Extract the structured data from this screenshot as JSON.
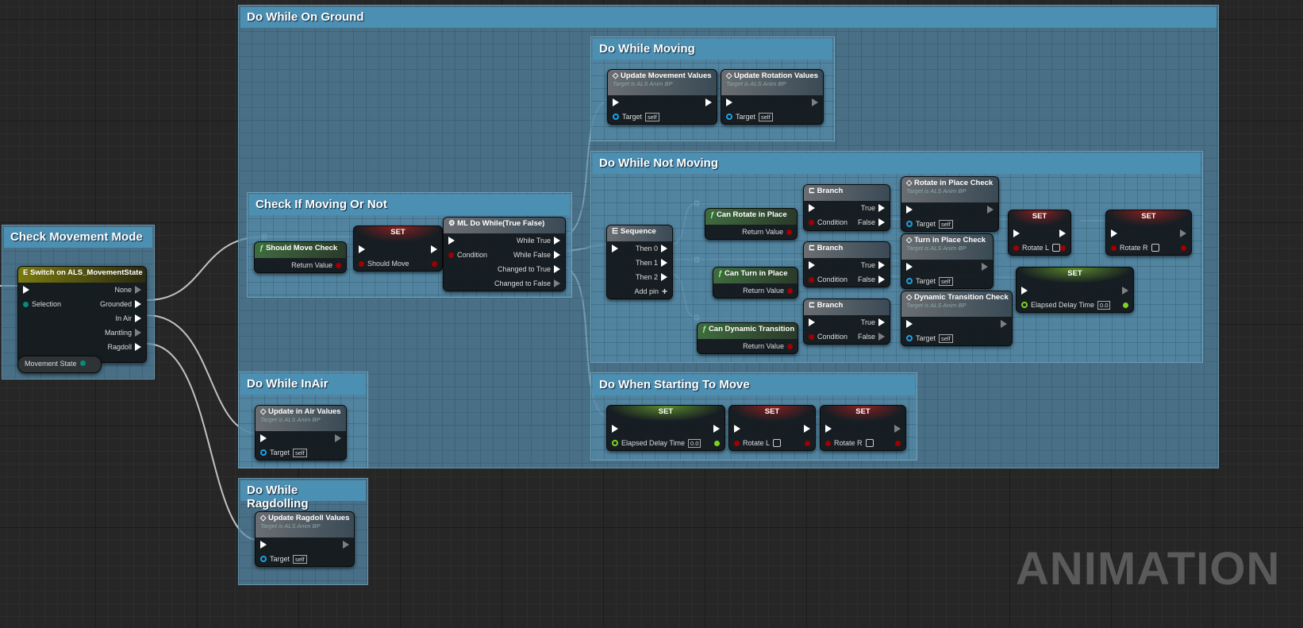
{
  "colors": {
    "comment_header": "#4b8fb3",
    "func_header": "#3f6b3f",
    "set_bool": "#8b1f1f",
    "set_float": "#5a8a2a",
    "switch_header": "#7a7a10",
    "call_header": "#3a4a55",
    "bool_pin": "#a00000",
    "obj_pin": "#1ea0e6",
    "float_pin": "#7ed321",
    "enum_pin": "#0a8a7a"
  },
  "comments": [
    {
      "id": "ground",
      "title": "Do While On Ground"
    },
    {
      "id": "mode",
      "title": "Check Movement Mode"
    },
    {
      "id": "check",
      "title": "Check If Moving Or Not"
    },
    {
      "id": "moving",
      "title": "Do While Moving"
    },
    {
      "id": "notmoving",
      "title": "Do While Not Moving"
    },
    {
      "id": "starting",
      "title": "Do When Starting To Move"
    },
    {
      "id": "inair",
      "title": "Do While InAir"
    },
    {
      "id": "ragdoll",
      "title": "Do While Ragdolling"
    }
  ],
  "nodes": [
    {
      "id": "switch",
      "kind": "switch",
      "title": "Switch on ALS_MovementState",
      "icon": "switch-icon",
      "rows": [
        [
          {
            "t": "exec"
          },
          {
            "t": "exec",
            "l": "None",
            "open": true
          }
        ],
        [
          {
            "t": "enum",
            "l": "Selection"
          },
          {
            "t": "exec",
            "l": "Grounded"
          }
        ],
        [
          null,
          {
            "t": "exec",
            "l": "In Air"
          }
        ],
        [
          null,
          {
            "t": "exec",
            "l": "Mantling",
            "open": true
          }
        ],
        [
          null,
          {
            "t": "exec",
            "l": "Ragdoll"
          }
        ]
      ]
    },
    {
      "id": "getms",
      "kind": "getter",
      "title": "Movement State"
    },
    {
      "id": "smc",
      "kind": "func",
      "title": "Should Move Check",
      "icon": "function-icon",
      "rows": [
        [
          null,
          {
            "t": "bool",
            "l": "Return Value"
          }
        ]
      ]
    },
    {
      "id": "set1",
      "kind": "setb",
      "title": "SET",
      "rows": [
        [
          {
            "t": "exec"
          },
          {
            "t": "exec"
          }
        ],
        [
          {
            "t": "bool",
            "l": "Should Move"
          },
          {
            "t": "bool"
          }
        ]
      ]
    },
    {
      "id": "mldo",
      "kind": "call",
      "title": "ML Do While(True False)",
      "icon": "macro-icon",
      "rows": [
        [
          {
            "t": "exec"
          },
          {
            "t": "exec",
            "l": "While True"
          }
        ],
        [
          {
            "t": "bool",
            "l": "Condition"
          },
          {
            "t": "exec",
            "l": "While False"
          }
        ],
        [
          null,
          {
            "t": "exec",
            "l": "Changed to True"
          }
        ],
        [
          null,
          {
            "t": "exec",
            "l": "Changed to False",
            "open": true
          }
        ]
      ]
    },
    {
      "id": "umv",
      "kind": "call",
      "title": "Update Movement Values",
      "sub": "Target is ALS Anim BP",
      "icon": "call-icon",
      "rows": [
        [
          {
            "t": "exec"
          },
          {
            "t": "exec"
          }
        ],
        [
          {
            "t": "obj",
            "l": "Target",
            "v": "self"
          },
          null
        ]
      ]
    },
    {
      "id": "urv",
      "kind": "call",
      "title": "Update Rotation Values",
      "sub": "Target is ALS Anim BP",
      "icon": "call-icon",
      "rows": [
        [
          {
            "t": "exec"
          },
          {
            "t": "exec",
            "open": true
          }
        ],
        [
          {
            "t": "obj",
            "l": "Target",
            "v": "self"
          },
          null
        ]
      ]
    },
    {
      "id": "seq",
      "kind": "call",
      "title": "Sequence",
      "icon": "sequence-icon",
      "rows": [
        [
          {
            "t": "exec"
          },
          {
            "t": "exec",
            "l": "Then 0"
          }
        ],
        [
          null,
          {
            "t": "exec",
            "l": "Then 1"
          }
        ],
        [
          null,
          {
            "t": "exec",
            "l": "Then 2"
          }
        ],
        [
          null,
          {
            "t": "add",
            "l": "Add pin"
          }
        ]
      ]
    },
    {
      "id": "crp",
      "kind": "func",
      "title": "Can Rotate in Place",
      "icon": "function-icon",
      "rows": [
        [
          null,
          {
            "t": "bool",
            "l": "Return Value"
          }
        ]
      ]
    },
    {
      "id": "br1",
      "kind": "call",
      "title": "Branch",
      "icon": "branch-icon",
      "rows": [
        [
          {
            "t": "exec"
          },
          {
            "t": "exec",
            "l": "True"
          }
        ],
        [
          {
            "t": "bool",
            "l": "Condition"
          },
          {
            "t": "exec",
            "l": "False"
          }
        ]
      ]
    },
    {
      "id": "ripc",
      "kind": "call",
      "title": "Rotate in Place Check",
      "sub": "Target is ALS Anim BP",
      "icon": "call-icon",
      "rows": [
        [
          {
            "t": "exec"
          },
          {
            "t": "exec",
            "open": true
          }
        ],
        [
          {
            "t": "obj",
            "l": "Target",
            "v": "self"
          },
          null
        ]
      ]
    },
    {
      "id": "setrl",
      "kind": "setb",
      "title": "SET",
      "rows": [
        [
          {
            "t": "exec"
          },
          {
            "t": "exec"
          }
        ],
        [
          {
            "t": "bool",
            "l": "Rotate L",
            "c": true
          },
          {
            "t": "bool"
          }
        ]
      ]
    },
    {
      "id": "setrr",
      "kind": "setb",
      "title": "SET",
      "rows": [
        [
          {
            "t": "exec"
          },
          {
            "t": "exec",
            "open": true
          }
        ],
        [
          {
            "t": "bool",
            "l": "Rotate R",
            "c": true
          },
          {
            "t": "bool"
          }
        ]
      ]
    },
    {
      "id": "ctp",
      "kind": "func",
      "title": "Can Turn in Place",
      "icon": "function-icon",
      "rows": [
        [
          null,
          {
            "t": "bool",
            "l": "Return Value"
          }
        ]
      ]
    },
    {
      "id": "br2",
      "kind": "call",
      "title": "Branch",
      "icon": "branch-icon",
      "rows": [
        [
          {
            "t": "exec"
          },
          {
            "t": "exec",
            "l": "True"
          }
        ],
        [
          {
            "t": "bool",
            "l": "Condition"
          },
          {
            "t": "exec",
            "l": "False"
          }
        ]
      ]
    },
    {
      "id": "tipc",
      "kind": "call",
      "title": "Turn in Place Check",
      "sub": "Target is ALS Anim BP",
      "icon": "call-icon",
      "rows": [
        [
          {
            "t": "exec"
          },
          {
            "t": "exec",
            "open": true
          }
        ],
        [
          {
            "t": "obj",
            "l": "Target",
            "v": "self"
          },
          null
        ]
      ]
    },
    {
      "id": "setedt",
      "kind": "setf",
      "title": "SET",
      "rows": [
        [
          {
            "t": "exec"
          },
          {
            "t": "exec",
            "open": true
          }
        ],
        [
          {
            "t": "float",
            "l": "Elapsed Delay Time",
            "v": "0.0"
          },
          {
            "t": "float"
          }
        ]
      ]
    },
    {
      "id": "cdt",
      "kind": "func",
      "title": "Can Dynamic Transition",
      "icon": "function-icon",
      "rows": [
        [
          null,
          {
            "t": "bool",
            "l": "Return Value"
          }
        ]
      ]
    },
    {
      "id": "br3",
      "kind": "call",
      "title": "Branch",
      "icon": "branch-icon",
      "rows": [
        [
          {
            "t": "exec"
          },
          {
            "t": "exec",
            "l": "True"
          }
        ],
        [
          {
            "t": "bool",
            "l": "Condition"
          },
          {
            "t": "exec",
            "l": "False",
            "open": true
          }
        ]
      ]
    },
    {
      "id": "dtc",
      "kind": "call",
      "title": "Dynamic Transition Check",
      "sub": "Target is ALS Anim BP",
      "icon": "call-icon",
      "rows": [
        [
          {
            "t": "exec"
          },
          {
            "t": "exec",
            "open": true
          }
        ],
        [
          {
            "t": "obj",
            "l": "Target",
            "v": "self"
          },
          null
        ]
      ]
    },
    {
      "id": "setedt2",
      "kind": "setf",
      "title": "SET",
      "rows": [
        [
          {
            "t": "exec"
          },
          {
            "t": "exec"
          }
        ],
        [
          {
            "t": "float",
            "l": "Elapsed Delay Time",
            "v": "0.0"
          },
          {
            "t": "float"
          }
        ]
      ]
    },
    {
      "id": "setrl2",
      "kind": "setb",
      "title": "SET",
      "rows": [
        [
          {
            "t": "exec"
          },
          {
            "t": "exec"
          }
        ],
        [
          {
            "t": "bool",
            "l": "Rotate L",
            "c": true
          },
          {
            "t": "bool"
          }
        ]
      ]
    },
    {
      "id": "setrr2",
      "kind": "setb",
      "title": "SET",
      "rows": [
        [
          {
            "t": "exec"
          },
          {
            "t": "exec",
            "open": true
          }
        ],
        [
          {
            "t": "bool",
            "l": "Rotate R",
            "c": true
          },
          {
            "t": "bool"
          }
        ]
      ]
    },
    {
      "id": "uiav",
      "kind": "call",
      "title": "Update in Air Values",
      "sub": "Target is ALS Anim BP",
      "icon": "call-icon",
      "rows": [
        [
          {
            "t": "exec"
          },
          {
            "t": "exec",
            "open": true
          }
        ],
        [
          {
            "t": "obj",
            "l": "Target",
            "v": "self"
          },
          null
        ]
      ]
    },
    {
      "id": "urdv",
      "kind": "call",
      "title": "Update Ragdoll Values",
      "sub": "Target is ALS Anim BP",
      "icon": "call-icon",
      "rows": [
        [
          {
            "t": "exec"
          },
          {
            "t": "exec",
            "open": true
          }
        ],
        [
          {
            "t": "obj",
            "l": "Target",
            "v": "self"
          },
          null
        ]
      ]
    }
  ],
  "watermark": "ANIMATION"
}
